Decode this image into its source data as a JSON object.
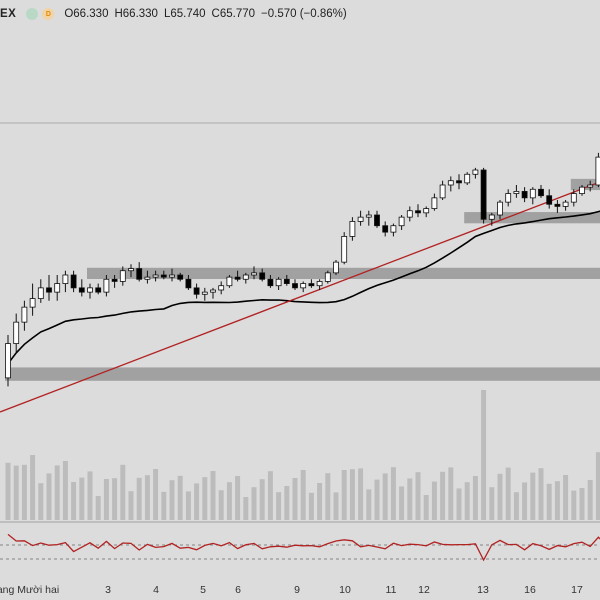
{
  "legend": {
    "symbol_suffix": "EX",
    "green_dot_icon": "indicator-dot-icon",
    "orange_dot_label": "D",
    "open": "O66.330",
    "high": "H66.330",
    "low": "L65.740",
    "close": "C65.770",
    "change": "−0.570 (−0.86%)"
  },
  "date_axis": {
    "first_label": "ang Mười hai",
    "ticks": [
      "3",
      "4",
      "5",
      "6",
      "9",
      "10",
      "11",
      "12",
      "13",
      "16",
      "17"
    ]
  },
  "colors": {
    "background": "#dcdcdc",
    "up_candle": "#ffffff",
    "down_candle": "#000000",
    "trendline": "#b22222",
    "moving_average": "#000000",
    "zones": "#9a9a9a",
    "volume": "#bcbcbc",
    "oscillator": "#b22222"
  },
  "chart_data": {
    "type": "candlestick",
    "price_scale": [
      56,
      70
    ],
    "candles": [
      [
        56.8,
        58.8,
        56.4,
        58.4
      ],
      [
        58.4,
        59.8,
        58.0,
        59.4
      ],
      [
        59.4,
        60.4,
        59.0,
        60.1
      ],
      [
        60.1,
        61.2,
        59.7,
        60.5
      ],
      [
        60.5,
        61.4,
        60.3,
        61.0
      ],
      [
        61.0,
        61.6,
        60.4,
        60.8
      ],
      [
        60.8,
        61.6,
        60.4,
        61.2
      ],
      [
        61.2,
        61.8,
        60.8,
        61.6
      ],
      [
        61.6,
        61.8,
        60.8,
        61.0
      ],
      [
        61.0,
        61.4,
        60.6,
        60.8
      ],
      [
        60.8,
        61.2,
        60.5,
        61.0
      ],
      [
        61.0,
        61.2,
        60.7,
        60.8
      ],
      [
        60.8,
        61.6,
        60.6,
        61.4
      ],
      [
        61.4,
        61.6,
        61.0,
        61.3
      ],
      [
        61.3,
        62.0,
        61.1,
        61.8
      ],
      [
        61.8,
        62.1,
        61.5,
        61.9
      ],
      [
        61.9,
        62.2,
        61.3,
        61.4
      ],
      [
        61.4,
        61.8,
        61.2,
        61.5
      ],
      [
        61.5,
        61.8,
        61.3,
        61.6
      ],
      [
        61.6,
        61.8,
        61.4,
        61.5
      ],
      [
        61.5,
        61.9,
        61.3,
        61.6
      ],
      [
        61.6,
        61.7,
        61.3,
        61.4
      ],
      [
        61.4,
        61.6,
        60.9,
        61.0
      ],
      [
        61.0,
        61.2,
        60.5,
        60.7
      ],
      [
        60.7,
        61.0,
        60.4,
        60.8
      ],
      [
        60.8,
        61.0,
        60.5,
        60.9
      ],
      [
        60.9,
        61.3,
        60.7,
        61.1
      ],
      [
        61.1,
        61.6,
        61.0,
        61.5
      ],
      [
        61.5,
        61.8,
        61.3,
        61.4
      ],
      [
        61.4,
        61.7,
        61.2,
        61.6
      ],
      [
        61.6,
        62.0,
        61.4,
        61.7
      ],
      [
        61.7,
        61.9,
        61.3,
        61.4
      ],
      [
        61.4,
        61.6,
        61.0,
        61.1
      ],
      [
        61.1,
        61.5,
        60.9,
        61.4
      ],
      [
        61.4,
        61.6,
        61.1,
        61.2
      ],
      [
        61.2,
        61.4,
        60.9,
        61.0
      ],
      [
        61.0,
        61.3,
        60.8,
        61.2
      ],
      [
        61.2,
        61.4,
        61.0,
        61.1
      ],
      [
        61.1,
        61.4,
        60.9,
        61.3
      ],
      [
        61.3,
        61.8,
        61.2,
        61.7
      ],
      [
        61.7,
        62.3,
        61.6,
        62.2
      ],
      [
        62.2,
        63.6,
        62.1,
        63.4
      ],
      [
        63.4,
        64.3,
        63.2,
        64.1
      ],
      [
        64.1,
        64.6,
        63.9,
        64.3
      ],
      [
        64.3,
        64.6,
        63.9,
        64.4
      ],
      [
        64.4,
        64.6,
        63.8,
        63.9
      ],
      [
        63.9,
        64.1,
        63.4,
        63.6
      ],
      [
        63.6,
        64.0,
        63.4,
        63.9
      ],
      [
        63.9,
        64.4,
        63.7,
        64.3
      ],
      [
        64.3,
        64.8,
        64.1,
        64.6
      ],
      [
        64.6,
        64.9,
        64.3,
        64.5
      ],
      [
        64.5,
        64.8,
        64.3,
        64.7
      ],
      [
        64.7,
        65.4,
        64.6,
        65.2
      ],
      [
        65.2,
        66.0,
        65.1,
        65.8
      ],
      [
        65.8,
        66.2,
        65.5,
        66.0
      ],
      [
        66.0,
        66.3,
        65.6,
        65.9
      ],
      [
        65.9,
        66.4,
        65.8,
        66.3
      ],
      [
        66.3,
        66.6,
        66.1,
        66.5
      ],
      [
        66.5,
        66.6,
        64.0,
        64.2
      ],
      [
        64.2,
        64.5,
        63.9,
        64.4
      ],
      [
        64.4,
        65.1,
        64.2,
        65.0
      ],
      [
        65.0,
        65.6,
        64.8,
        65.4
      ],
      [
        65.4,
        65.8,
        65.2,
        65.5
      ],
      [
        65.5,
        65.7,
        65.0,
        65.2
      ],
      [
        65.2,
        65.7,
        64.9,
        65.6
      ],
      [
        65.6,
        65.8,
        65.2,
        65.3
      ],
      [
        65.3,
        65.6,
        64.7,
        64.9
      ],
      [
        64.9,
        65.1,
        64.5,
        64.8
      ],
      [
        64.8,
        65.1,
        64.6,
        65.0
      ],
      [
        65.0,
        65.6,
        64.8,
        65.4
      ],
      [
        65.4,
        65.8,
        65.3,
        65.7
      ],
      [
        65.7,
        66.0,
        65.5,
        65.8
      ],
      [
        65.8,
        67.3,
        65.7,
        67.1
      ],
      [
        67.1,
        67.7,
        66.9,
        67.6
      ]
    ],
    "resistance_zones": [
      {
        "from_bar": 10,
        "to_bar": 73,
        "low": 61.6,
        "high": 61.75
      },
      {
        "from_bar": 0,
        "to_bar": 73,
        "low": 56.85,
        "high": 57.1
      },
      {
        "from_bar": 56,
        "to_bar": 73,
        "low": 64.2,
        "high": 64.35
      },
      {
        "from_bar": 69,
        "to_bar": 73,
        "low": 65.75,
        "high": 65.9
      }
    ]
  }
}
